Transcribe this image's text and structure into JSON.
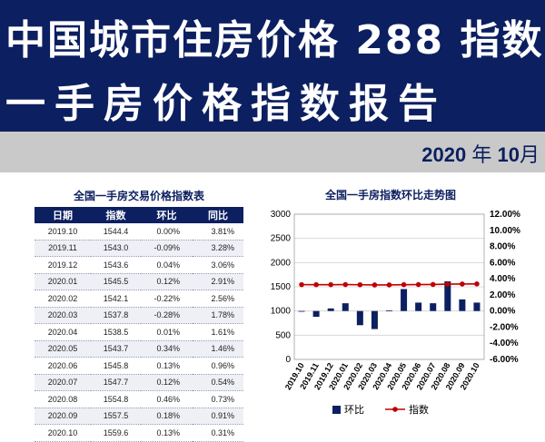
{
  "header": {
    "title_line1": "中国城市住房价格 288 指数",
    "title_line2": "一手房价格指数报告",
    "date_year": "2020",
    "date_year_unit": "年",
    "date_month": "10",
    "date_month_unit": "月"
  },
  "table": {
    "title": "全国一手房交易价格指数表",
    "columns": [
      "日期",
      "指数",
      "环比",
      "同比"
    ],
    "rows": [
      [
        "2019.10",
        "1544.4",
        "0.00%",
        "3.81%"
      ],
      [
        "2019.11",
        "1543.0",
        "-0.09%",
        "3.28%"
      ],
      [
        "2019.12",
        "1543.6",
        "0.04%",
        "3.06%"
      ],
      [
        "2020.01",
        "1545.5",
        "0.12%",
        "2.91%"
      ],
      [
        "2020.02",
        "1542.1",
        "-0.22%",
        "2.56%"
      ],
      [
        "2020.03",
        "1537.8",
        "-0.28%",
        "1.78%"
      ],
      [
        "2020.04",
        "1538.5",
        "0.01%",
        "1.61%"
      ],
      [
        "2020.05",
        "1543.7",
        "0.34%",
        "1.46%"
      ],
      [
        "2020.06",
        "1545.8",
        "0.13%",
        "0.96%"
      ],
      [
        "2020.07",
        "1547.7",
        "0.12%",
        "0.54%"
      ],
      [
        "2020.08",
        "1554.8",
        "0.46%",
        "0.73%"
      ],
      [
        "2020.09",
        "1557.5",
        "0.18%",
        "0.91%"
      ],
      [
        "2020.10",
        "1559.6",
        "0.13%",
        "0.31%"
      ]
    ]
  },
  "chart_data": {
    "type": "bar",
    "title": "全国一手房指数环比走势图",
    "categories": [
      "2019.10",
      "2019.11",
      "2019.12",
      "2020.01",
      "2020.02",
      "2020.03",
      "2020.04",
      "2020.05",
      "2020.06",
      "2020.07",
      "2020.08",
      "2020.09",
      "2020.10"
    ],
    "series": [
      {
        "name": "环比",
        "kind": "bar",
        "axis": "right",
        "color": "#0c1f60",
        "values": [
          0.0,
          -0.09,
          0.04,
          0.12,
          -0.22,
          -0.28,
          0.01,
          0.34,
          0.13,
          0.12,
          0.46,
          0.18,
          0.13
        ]
      },
      {
        "name": "指数",
        "kind": "line",
        "axis": "left",
        "color": "#c00000",
        "values": [
          1544.4,
          1543.0,
          1543.6,
          1545.5,
          1542.1,
          1537.8,
          1538.5,
          1543.7,
          1545.8,
          1547.7,
          1554.8,
          1557.5,
          1559.6
        ]
      }
    ],
    "ylim_left": [
      0,
      3000
    ],
    "yticks_left": [
      "0",
      "500",
      "1000",
      "1500",
      "2000",
      "2500",
      "3000"
    ],
    "ylim_right": [
      -6,
      12
    ],
    "yticks_right": [
      "-6.00%",
      "-4.00%",
      "-2.00%",
      "0.00%",
      "2.00%",
      "4.00%",
      "6.00%",
      "8.00%",
      "10.00%",
      "12.00%"
    ],
    "grid": true,
    "legend_position": "bottom"
  }
}
